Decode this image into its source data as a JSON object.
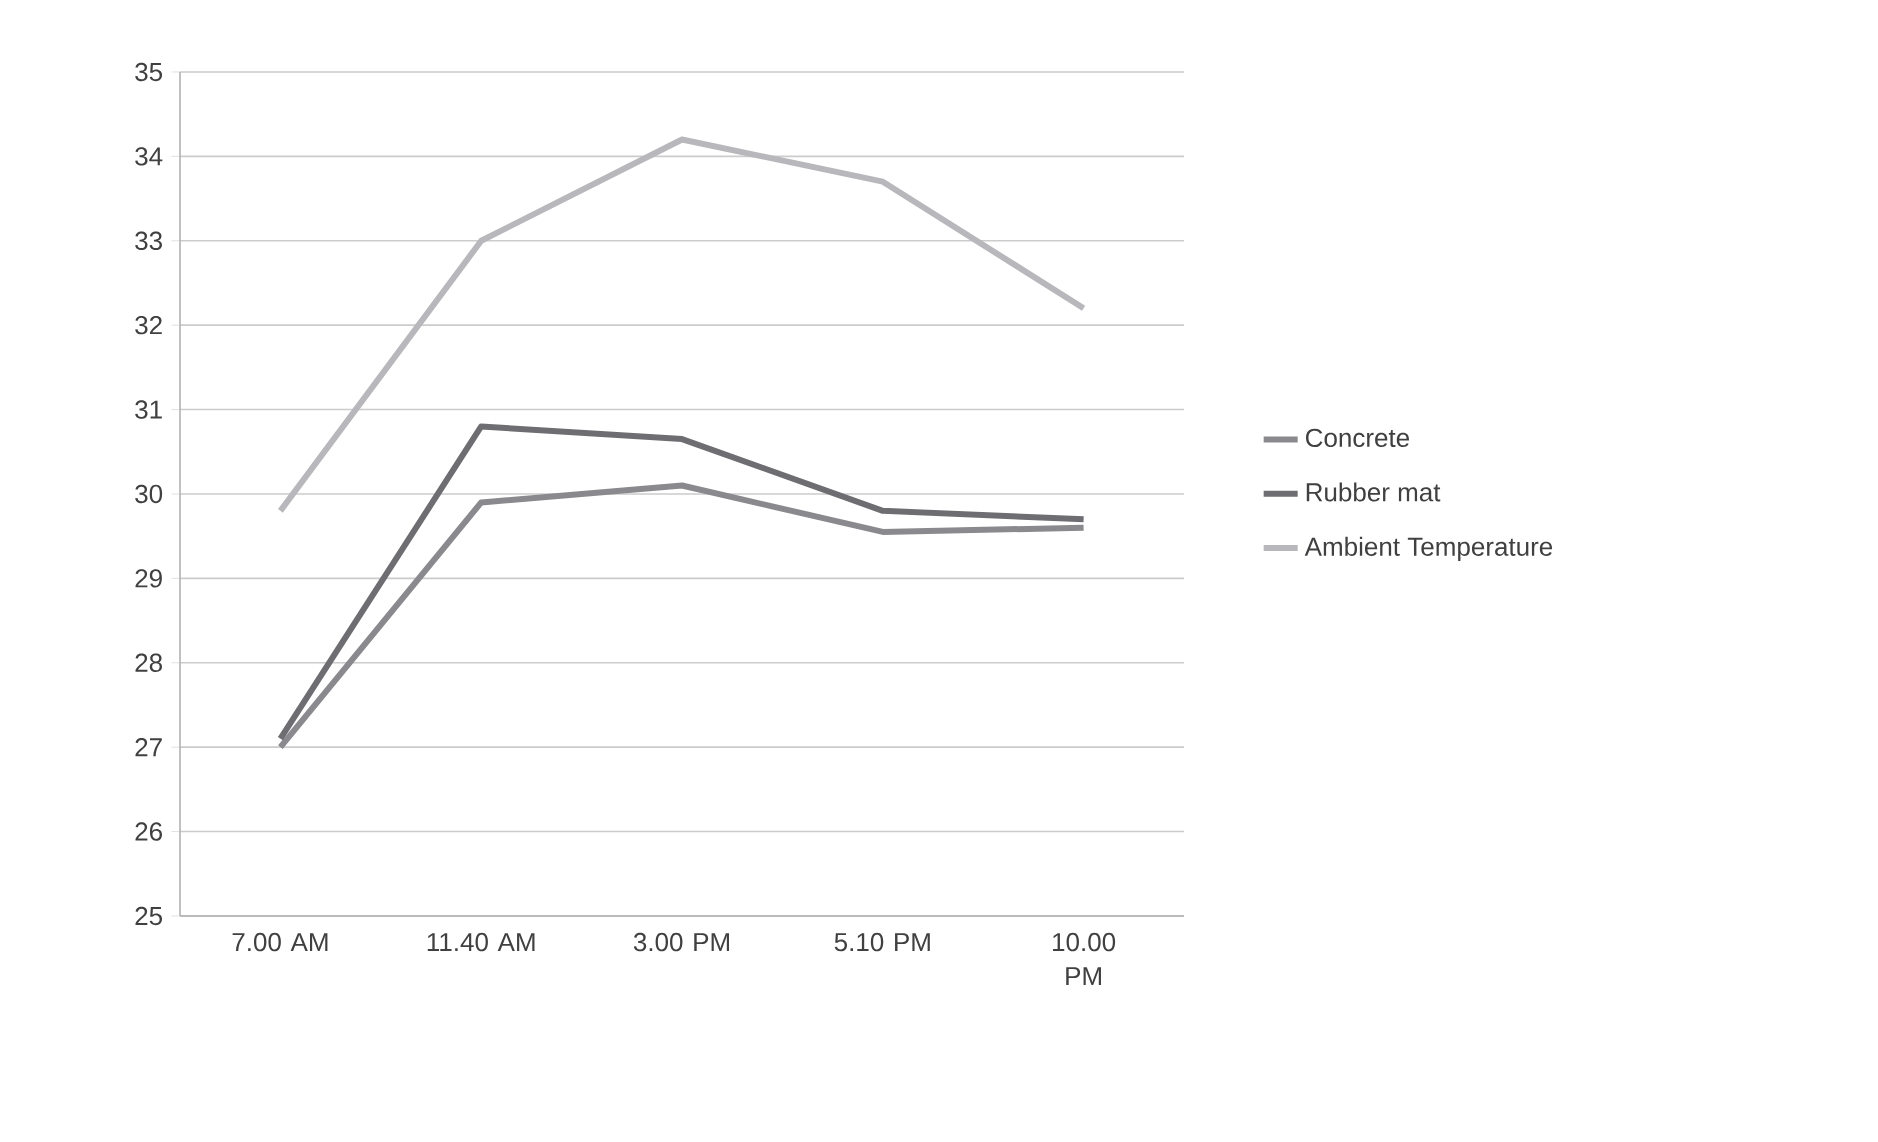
{
  "chart_data": {
    "type": "line",
    "categories": [
      "7.00 AM",
      "11.40 AM",
      "3.00 PM",
      "5.10 PM",
      "10.00 PM"
    ],
    "series": [
      {
        "name": "Concrete",
        "color": "#8a8a8e",
        "values": [
          27.0,
          29.9,
          30.1,
          29.55,
          29.6
        ]
      },
      {
        "name": "Rubber mat",
        "color": "#6e6e72",
        "values": [
          27.1,
          30.8,
          30.65,
          29.8,
          29.7
        ]
      },
      {
        "name": "Ambient Temperature",
        "color": "#b8b8bc",
        "values": [
          29.8,
          33.0,
          34.2,
          33.7,
          32.2
        ]
      }
    ],
    "ylim": [
      25,
      35
    ],
    "yticks": [
      25,
      26,
      27,
      28,
      29,
      30,
      31,
      32,
      33,
      34,
      35
    ],
    "grid": "y",
    "legend": "right",
    "marker": "none",
    "line_style": "solid"
  }
}
